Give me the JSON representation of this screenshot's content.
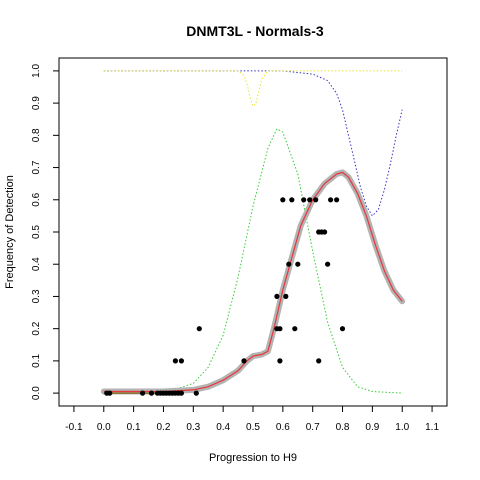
{
  "chart_data": {
    "type": "scatter",
    "title": "DNMT3L - Normals-3",
    "xlabel": "Progression to H9",
    "ylabel": "Frequency of Detection",
    "xlim": [
      -0.15,
      1.15
    ],
    "ylim": [
      -0.04,
      1.04
    ],
    "x_ticks": [
      "-0.1",
      "0.0",
      "0.1",
      "0.2",
      "0.3",
      "0.4",
      "0.5",
      "0.6",
      "0.7",
      "0.8",
      "0.9",
      "1.0",
      "1.1"
    ],
    "y_ticks": [
      "0.0",
      "0.1",
      "0.2",
      "0.3",
      "0.4",
      "0.5",
      "0.6",
      "0.7",
      "0.8",
      "0.9",
      "1.0"
    ],
    "grid": false,
    "colors": {
      "points": "#000000",
      "smooth_band": "#b3b3b3",
      "fit_line": "#e8363a",
      "green_density": "#33cc33",
      "blue_curve": "#3333cc",
      "yellow_curve": "#e6e633",
      "baseline": "#8b6f2a"
    },
    "series": [
      {
        "kind": "points",
        "x": [
          0.01,
          0.02,
          0.13,
          0.16,
          0.18,
          0.19,
          0.2,
          0.21,
          0.22,
          0.23,
          0.24,
          0.25,
          0.26,
          0.31,
          0.24,
          0.26,
          0.32,
          0.47,
          0.58,
          0.58,
          0.59,
          0.59,
          0.6,
          0.61,
          0.62,
          0.63,
          0.64,
          0.65,
          0.67,
          0.69,
          0.71,
          0.72,
          0.72,
          0.73,
          0.74,
          0.75,
          0.76,
          0.78,
          0.8
        ],
        "y": [
          0.0,
          0.0,
          0.0,
          0.0,
          0.0,
          0.0,
          0.0,
          0.0,
          0.0,
          0.0,
          0.0,
          0.0,
          0.0,
          0.0,
          0.1,
          0.1,
          0.2,
          0.1,
          0.3,
          0.2,
          0.1,
          0.2,
          0.6,
          0.3,
          0.4,
          0.6,
          0.2,
          0.4,
          0.6,
          0.6,
          0.6,
          0.1,
          0.5,
          0.5,
          0.5,
          0.4,
          0.6,
          0.6,
          0.2
        ]
      },
      {
        "kind": "smooth_band",
        "x": [
          0.0,
          0.1,
          0.2,
          0.3,
          0.35,
          0.4,
          0.45,
          0.48,
          0.5,
          0.53,
          0.55,
          0.57,
          0.6,
          0.63,
          0.66,
          0.7,
          0.74,
          0.78,
          0.8,
          0.82,
          0.85,
          0.88,
          0.91,
          0.94,
          0.97,
          1.0
        ],
        "y": [
          0.005,
          0.005,
          0.005,
          0.01,
          0.02,
          0.04,
          0.07,
          0.1,
          0.115,
          0.12,
          0.13,
          0.2,
          0.32,
          0.42,
          0.52,
          0.6,
          0.65,
          0.68,
          0.685,
          0.67,
          0.62,
          0.55,
          0.46,
          0.38,
          0.32,
          0.285
        ]
      },
      {
        "kind": "fit_line",
        "x": [
          0.0,
          0.1,
          0.2,
          0.3,
          0.35,
          0.4,
          0.45,
          0.48,
          0.5,
          0.53,
          0.55,
          0.57,
          0.6,
          0.63,
          0.66,
          0.7,
          0.74,
          0.78,
          0.8,
          0.82,
          0.85,
          0.88,
          0.91,
          0.94,
          0.97,
          1.0
        ],
        "y": [
          0.005,
          0.005,
          0.005,
          0.01,
          0.02,
          0.04,
          0.07,
          0.1,
          0.115,
          0.12,
          0.13,
          0.2,
          0.32,
          0.42,
          0.52,
          0.6,
          0.65,
          0.68,
          0.685,
          0.67,
          0.62,
          0.55,
          0.46,
          0.38,
          0.32,
          0.285
        ]
      },
      {
        "kind": "green_density",
        "x": [
          0.0,
          0.2,
          0.3,
          0.35,
          0.4,
          0.45,
          0.5,
          0.55,
          0.58,
          0.6,
          0.65,
          0.7,
          0.75,
          0.8,
          0.85,
          0.9,
          1.0
        ],
        "y": [
          0.0,
          0.0,
          0.03,
          0.08,
          0.18,
          0.36,
          0.58,
          0.76,
          0.82,
          0.81,
          0.68,
          0.44,
          0.22,
          0.08,
          0.02,
          0.005,
          0.0
        ]
      },
      {
        "kind": "blue_curve",
        "x": [
          0.0,
          0.6,
          0.7,
          0.75,
          0.78,
          0.8,
          0.82,
          0.84,
          0.86,
          0.88,
          0.9,
          0.92,
          0.94,
          0.96,
          0.98,
          1.0
        ],
        "y": [
          1.0,
          1.0,
          0.99,
          0.97,
          0.93,
          0.88,
          0.8,
          0.72,
          0.64,
          0.58,
          0.55,
          0.57,
          0.63,
          0.71,
          0.8,
          0.88
        ]
      },
      {
        "kind": "yellow_curve",
        "x": [
          0.0,
          0.45,
          0.47,
          0.48,
          0.49,
          0.5,
          0.51,
          0.52,
          0.53,
          0.55,
          1.0
        ],
        "y": [
          1.0,
          1.0,
          0.985,
          0.96,
          0.92,
          0.89,
          0.9,
          0.94,
          0.975,
          1.0,
          1.0
        ]
      },
      {
        "kind": "baseline",
        "x": [
          0.0,
          0.26
        ],
        "y": [
          0.0,
          0.0
        ]
      }
    ]
  }
}
